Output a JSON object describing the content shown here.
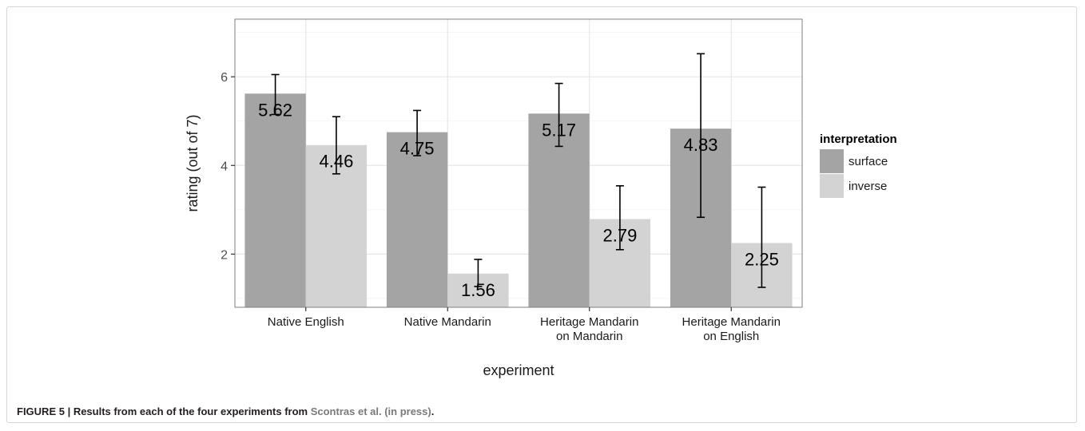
{
  "chart_data": {
    "type": "bar",
    "categories": [
      [
        "Native English"
      ],
      [
        "Native Mandarin"
      ],
      [
        "Heritage Mandarin",
        "on Mandarin"
      ],
      [
        "Heritage Mandarin",
        "on English"
      ]
    ],
    "series": [
      {
        "name": "surface",
        "color": "#a4a4a4",
        "values": [
          5.62,
          4.75,
          5.17,
          4.83
        ],
        "error_low": [
          5.15,
          4.22,
          4.43,
          2.83
        ],
        "error_high": [
          6.05,
          5.24,
          5.85,
          6.52
        ]
      },
      {
        "name": "inverse",
        "color": "#d3d3d3",
        "values": [
          4.46,
          1.56,
          2.79,
          2.25
        ],
        "error_low": [
          3.81,
          1.27,
          2.1,
          1.25
        ],
        "error_high": [
          5.1,
          1.88,
          3.54,
          3.51
        ]
      }
    ],
    "xlabel": "experiment",
    "ylabel": "rating (out of 7)",
    "yticks": [
      2,
      4,
      6
    ],
    "ylim": [
      0.8,
      7.3
    ],
    "grid": true,
    "data_labels": true,
    "legend": {
      "title": "interpretation",
      "position": "right"
    }
  },
  "caption": {
    "prefix": "FIGURE 5 | Results from each of the four experiments from ",
    "reference": "Scontras et al. (in press)",
    "suffix": "."
  }
}
